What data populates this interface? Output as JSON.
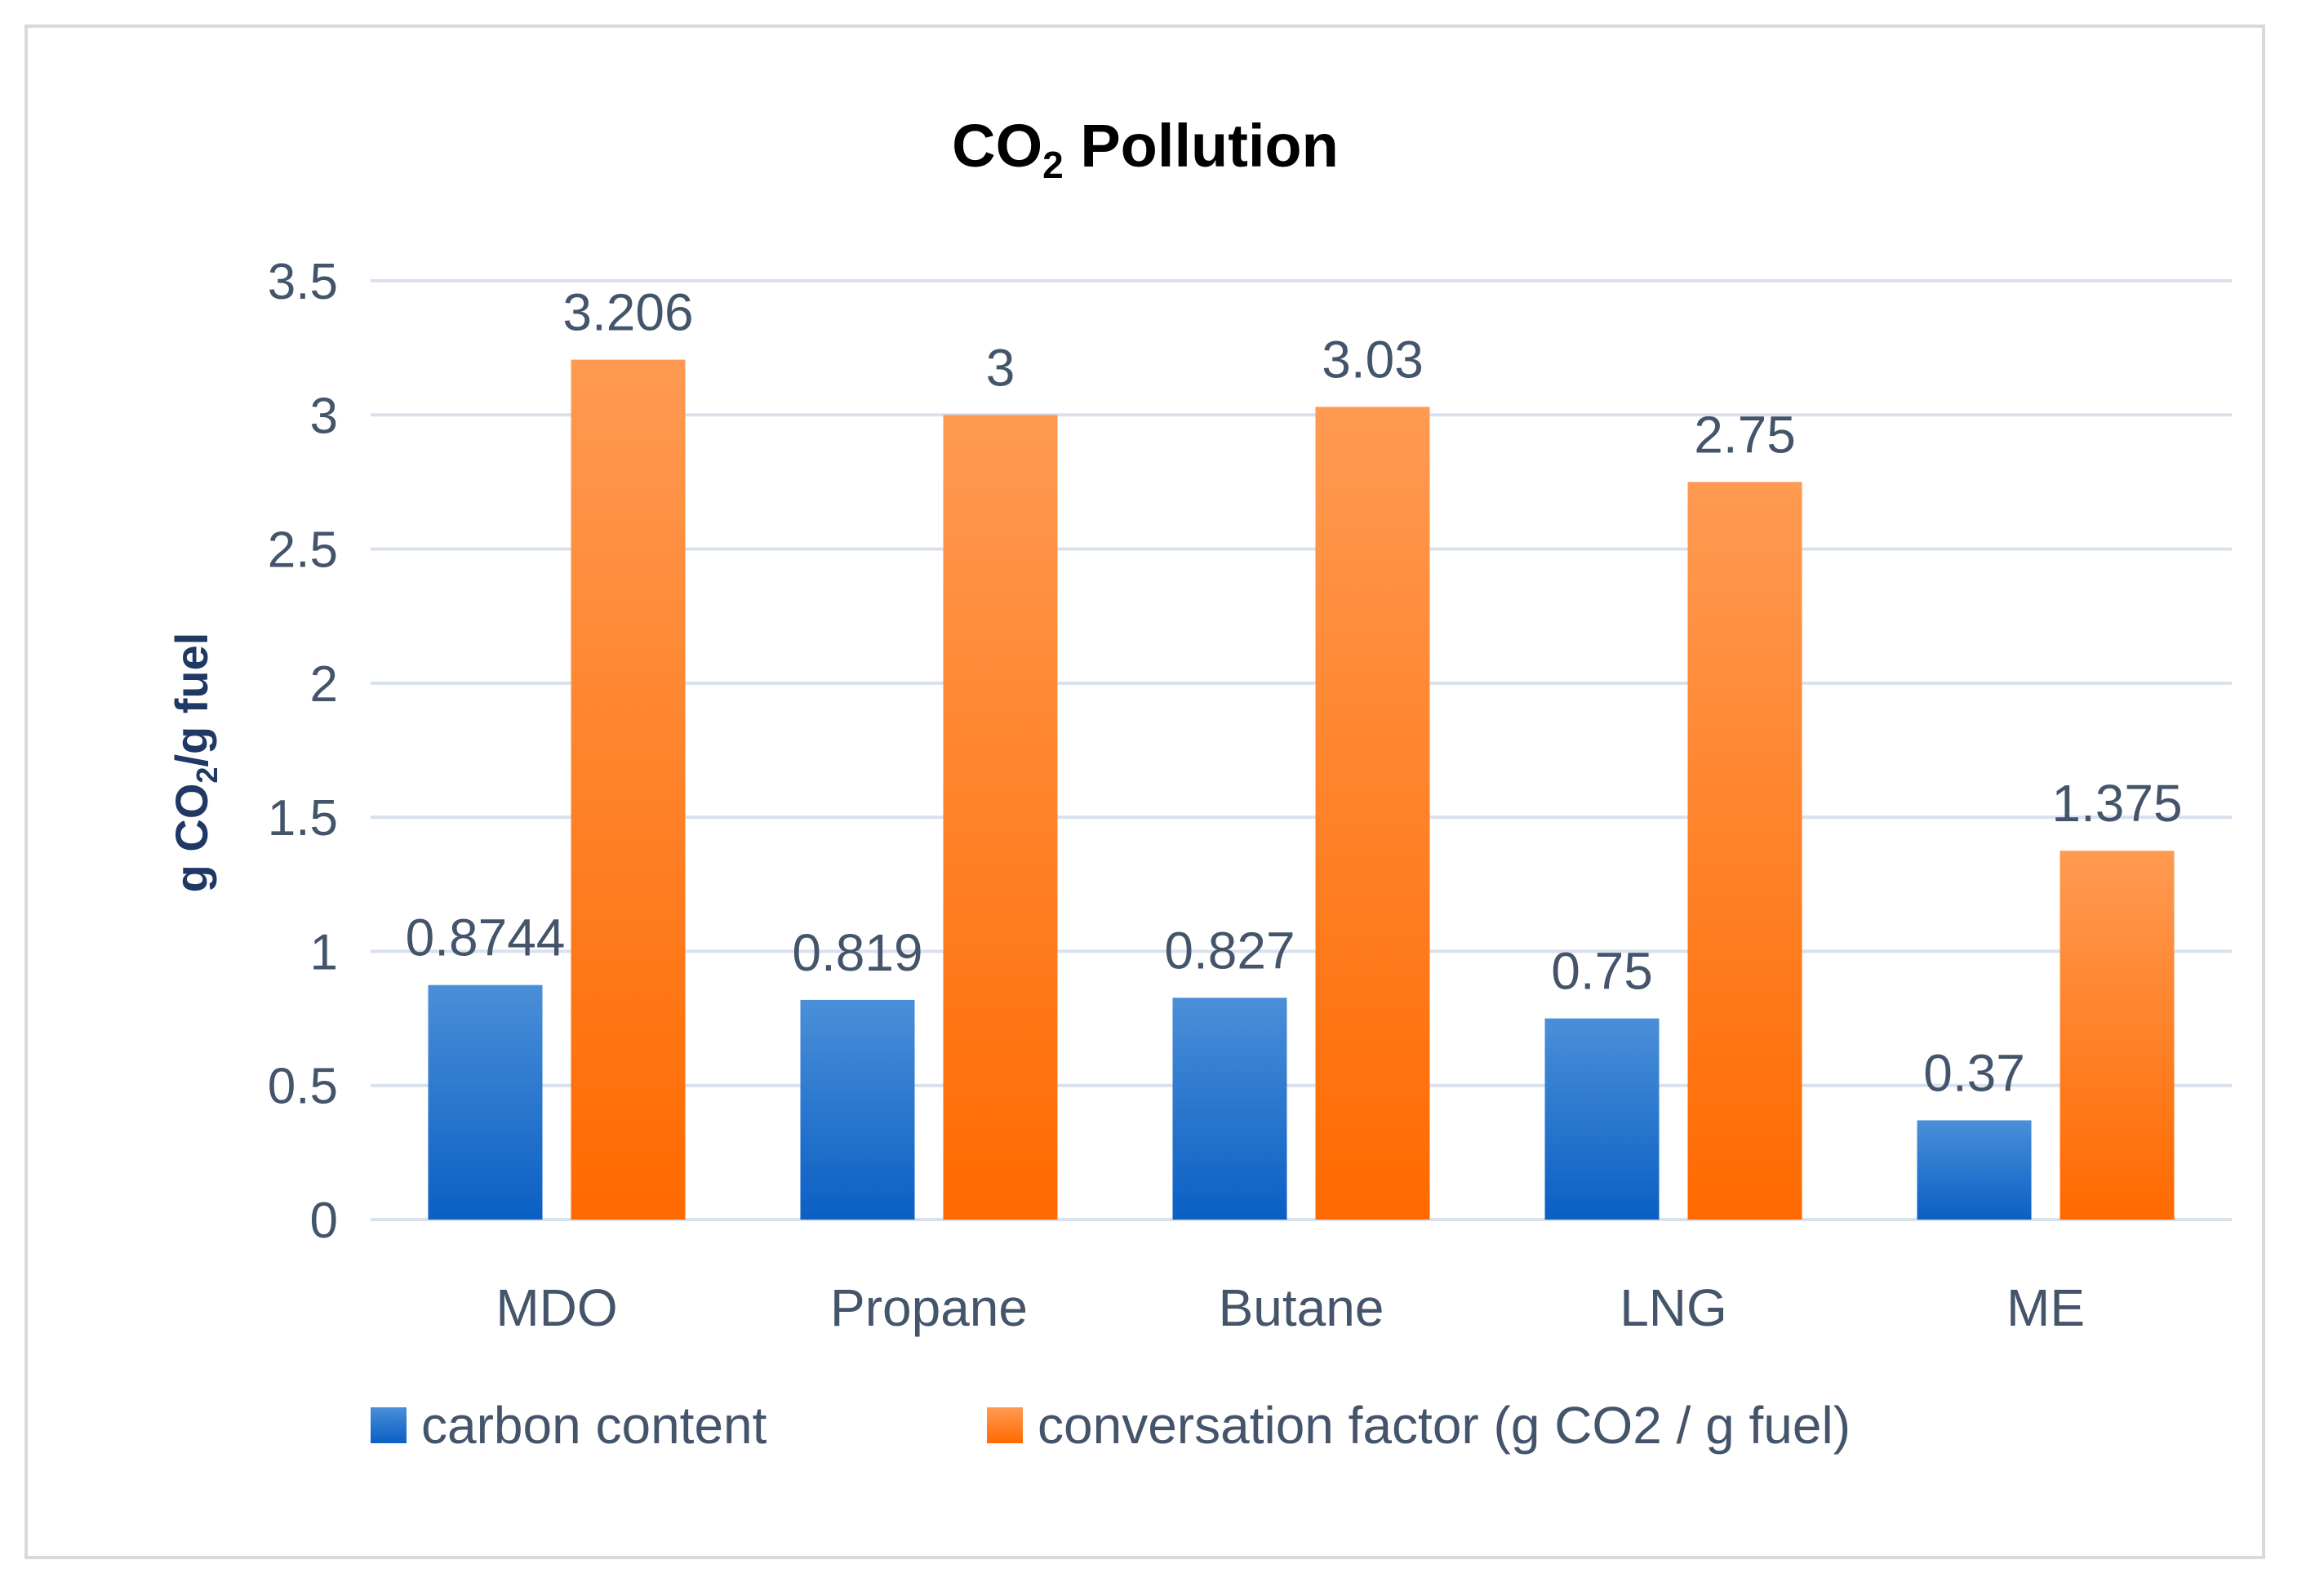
{
  "chart_data": {
    "type": "bar",
    "title": "CO",
    "title_subscript": "2",
    "title_suffix": " Pollution",
    "ylabel": "g CO",
    "ylabel_subscript": "2",
    "ylabel_suffix": "/g fuel",
    "xlabel": "",
    "ylim": [
      0,
      3.5
    ],
    "yticks": [
      0,
      0.5,
      1,
      1.5,
      2,
      2.5,
      3,
      3.5
    ],
    "ytick_labels": [
      "0",
      "0.5",
      "1",
      "1.5",
      "2",
      "2.5",
      "3",
      "3.5"
    ],
    "grid": true,
    "legend_position": "bottom",
    "categories": [
      "MDO",
      "Propane",
      "Butane",
      "LNG",
      "ME"
    ],
    "series": [
      {
        "name": "carbon content",
        "values": [
          0.8744,
          0.819,
          0.827,
          0.75,
          0.37
        ],
        "labels": [
          "0.8744",
          "0.819",
          "0.827",
          "0.75",
          "0.37"
        ],
        "color_top": "#4a8fd8",
        "color_bottom": "#0b5fc4"
      },
      {
        "name": "conversation factor (g CO2 / g fuel)",
        "values": [
          3.206,
          3,
          3.03,
          2.75,
          1.375
        ],
        "labels": [
          "3.206",
          "3",
          "3.03",
          "2.75",
          "1.375"
        ],
        "color_top": "#ff9a52",
        "color_bottom": "#ff6a00"
      }
    ],
    "gridline_color": "#d9e1ec",
    "text_color": "#44546a"
  }
}
